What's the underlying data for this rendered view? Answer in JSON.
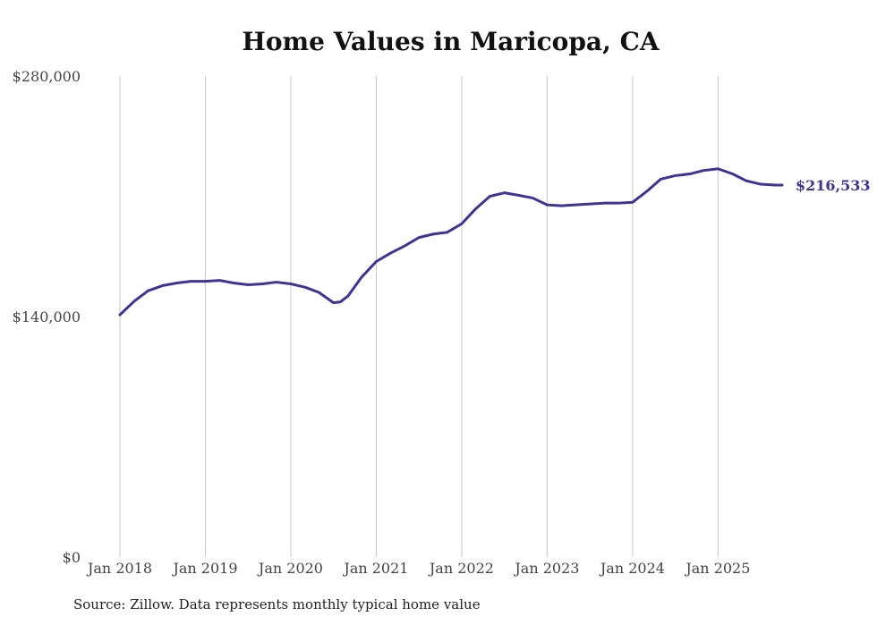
{
  "chart_data": {
    "type": "line",
    "title": "Home Values in Maricopa, CA",
    "xlabel": "",
    "ylabel": "",
    "ylim": [
      0,
      280000
    ],
    "xlim": [
      2018.0,
      2025.75
    ],
    "y_ticks": [
      {
        "value": 0,
        "label": "$0"
      },
      {
        "value": 140000,
        "label": "$140,000"
      },
      {
        "value": 280000,
        "label": "$280,000"
      }
    ],
    "x_ticks": [
      {
        "value": 2018,
        "label": "Jan 2018"
      },
      {
        "value": 2019,
        "label": "Jan 2019"
      },
      {
        "value": 2020,
        "label": "Jan 2020"
      },
      {
        "value": 2021,
        "label": "Jan 2021"
      },
      {
        "value": 2022,
        "label": "Jan 2022"
      },
      {
        "value": 2023,
        "label": "Jan 2023"
      },
      {
        "value": 2024,
        "label": "Jan 2024"
      },
      {
        "value": 2025,
        "label": "Jan 2025"
      }
    ],
    "grid": "vertical",
    "series": [
      {
        "name": "Typical home value",
        "color": "#3e3592",
        "end_label": "$216,533",
        "x": [
          2018.0,
          2018.17,
          2018.33,
          2018.5,
          2018.67,
          2018.83,
          2019.0,
          2019.17,
          2019.33,
          2019.5,
          2019.67,
          2019.83,
          2020.0,
          2020.17,
          2020.33,
          2020.5,
          2020.58,
          2020.67,
          2020.83,
          2021.0,
          2021.17,
          2021.33,
          2021.5,
          2021.67,
          2021.83,
          2022.0,
          2022.17,
          2022.33,
          2022.5,
          2022.67,
          2022.83,
          2023.0,
          2023.17,
          2023.33,
          2023.5,
          2023.67,
          2023.83,
          2024.0,
          2024.17,
          2024.33,
          2024.5,
          2024.67,
          2024.83,
          2025.0,
          2025.17,
          2025.33,
          2025.5,
          2025.67,
          2025.75
        ],
        "values": [
          141000,
          149000,
          155000,
          158000,
          159500,
          160500,
          160500,
          161000,
          159500,
          158500,
          159000,
          160000,
          159000,
          157000,
          154000,
          148000,
          148500,
          152000,
          163000,
          172000,
          177000,
          181000,
          186000,
          188000,
          189000,
          194000,
          203000,
          210000,
          212000,
          210500,
          209000,
          205000,
          204500,
          205000,
          205500,
          206000,
          206000,
          206500,
          213000,
          220000,
          222000,
          223000,
          225000,
          226000,
          223000,
          219000,
          217000,
          216500,
          216533
        ]
      }
    ]
  },
  "source_text": "Source: Zillow. Data represents monthly typical home value"
}
